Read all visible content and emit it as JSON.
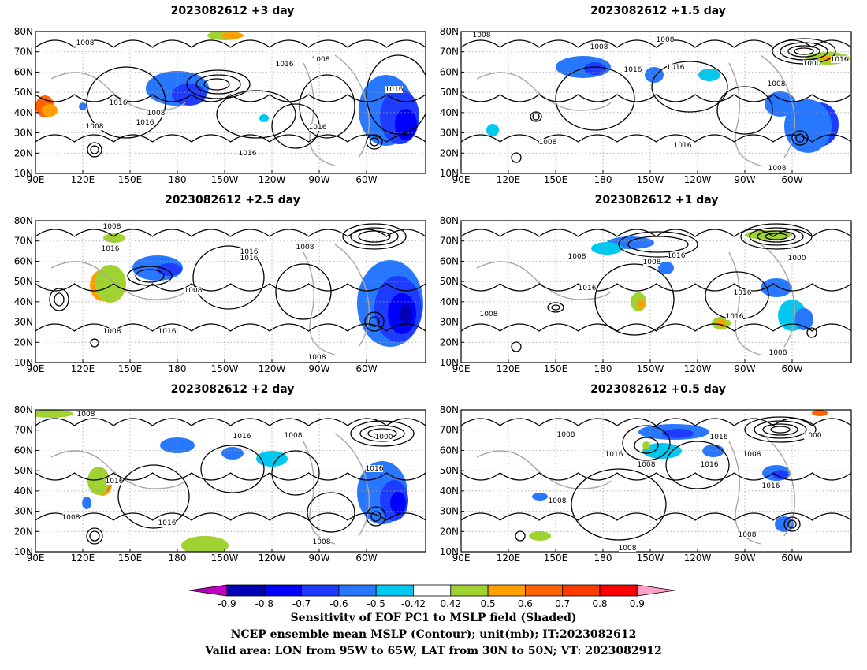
{
  "panels": [
    {
      "title": "2023082612  +3 day",
      "labels": [
        [
          "1008",
          108,
          57
        ],
        [
          "1016",
          361,
          84
        ],
        [
          "1008",
          407,
          78
        ],
        [
          "1016",
          150,
          133
        ],
        [
          "1008",
          198,
          146
        ],
        [
          "1016",
          184,
          158
        ],
        [
          "1016",
          500,
          116
        ],
        [
          "1008",
          120,
          163
        ],
        [
          "1016",
          403,
          164
        ],
        [
          "1016",
          314,
          197
        ]
      ]
    },
    {
      "title": "2023082612  +1.5 day",
      "labels": [
        [
          "1008",
          611,
          47
        ],
        [
          "1008",
          844,
          53
        ],
        [
          "1008",
          760,
          62
        ],
        [
          "1016",
          803,
          91
        ],
        [
          "1016",
          857,
          88
        ],
        [
          "1000",
          1030,
          83
        ],
        [
          "1016",
          1065,
          78
        ],
        [
          "1008",
          985,
          109
        ],
        [
          "1008",
          695,
          183
        ],
        [
          "1016",
          866,
          187
        ],
        [
          "1008",
          986,
          216
        ]
      ]
    },
    {
      "title": "2023082612  +2.5 day",
      "labels": [
        [
          "1008",
          142,
          290
        ],
        [
          "1016",
          140,
          318
        ],
        [
          "1016",
          316,
          322
        ],
        [
          "1016",
          316,
          330
        ],
        [
          "1008",
          387,
          316
        ],
        [
          "1008",
          245,
          371
        ],
        [
          "1008",
          142,
          423
        ],
        [
          "1016",
          212,
          423
        ],
        [
          "1008",
          402,
          456
        ]
      ]
    },
    {
      "title": "2023082612  +1 day",
      "labels": [
        [
          "1008",
          732,
          328
        ],
        [
          "1008",
          827,
          335
        ],
        [
          "1016",
          858,
          327
        ],
        [
          "1000",
          1011,
          330
        ],
        [
          "1016",
          745,
          368
        ],
        [
          "1016",
          942,
          374
        ],
        [
          "1008",
          620,
          401
        ],
        [
          "1016",
          932,
          404
        ],
        [
          "1008",
          987,
          450
        ]
      ]
    },
    {
      "title": "2023082612  +2 day",
      "labels": [
        [
          "1008",
          109,
          528
        ],
        [
          "1016",
          307,
          556
        ],
        [
          "1008",
          372,
          555
        ],
        [
          "1000",
          487,
          557
        ],
        [
          "1016",
          475,
          597
        ],
        [
          "1016",
          145,
          613
        ],
        [
          "1008",
          90,
          659
        ],
        [
          "1016",
          212,
          666
        ],
        [
          "1008",
          408,
          690
        ]
      ]
    },
    {
      "title": "2023082612  +0.5 day",
      "labels": [
        [
          "1008",
          718,
          554
        ],
        [
          "1016",
          912,
          557
        ],
        [
          "1000",
          1031,
          555
        ],
        [
          "1016",
          779,
          579
        ],
        [
          "1008",
          954,
          579
        ],
        [
          "1008",
          820,
          592
        ],
        [
          "1016",
          900,
          592
        ],
        [
          "1016",
          978,
          619
        ],
        [
          "1008",
          707,
          638
        ],
        [
          "1008",
          948,
          681
        ],
        [
          "1008",
          796,
          698
        ]
      ]
    }
  ],
  "lat_ticks": [
    "80N",
    "70N",
    "60N",
    "50N",
    "40N",
    "30N",
    "20N",
    "10N"
  ],
  "lon_ticks": [
    "90E",
    "120E",
    "150E",
    "180",
    "150W",
    "120W",
    "90W",
    "60W"
  ],
  "colorbar": {
    "ticks": [
      "-0.9",
      "-0.8",
      "-0.7",
      "-0.6",
      "-0.5",
      "-0.42",
      "0.42",
      "0.5",
      "0.6",
      "0.7",
      "0.8",
      "0.9"
    ],
    "colors": [
      "#c000c0",
      "#0000b4",
      "#0000ff",
      "#1e3cff",
      "#2878ff",
      "#00c8f0",
      "#ffffff",
      "#a0d232",
      "#ffa000",
      "#ff6400",
      "#ff3c00",
      "#ff0000",
      "#ffa0c8"
    ]
  },
  "caption": {
    "line1": "Sensitivity of EOF PC1 to MSLP field (Shaded)",
    "line2": "NCEP ensemble mean MSLP (Contour); unit(mb); IT:2023082612",
    "line3": "Valid area: LON from 95W to 65W, LAT from 30N to 50N; VT: 2023082912"
  }
}
